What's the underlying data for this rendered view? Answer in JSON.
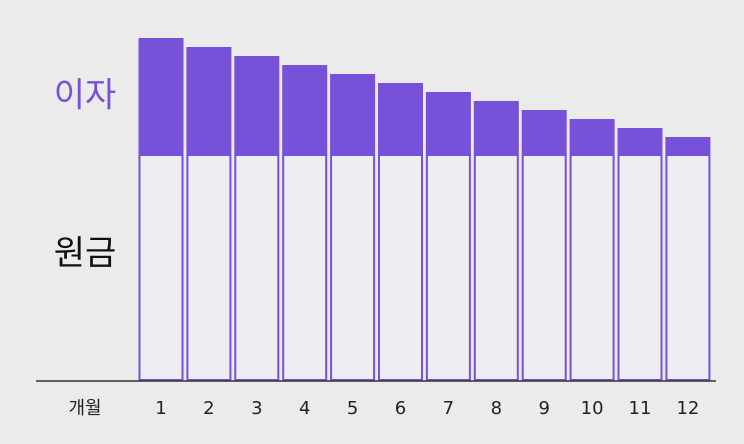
{
  "chart_data": {
    "type": "bar",
    "stacked": true,
    "x_label": "개월",
    "categories": [
      "1",
      "2",
      "3",
      "4",
      "5",
      "6",
      "7",
      "8",
      "9",
      "10",
      "11",
      "12"
    ],
    "series": [
      {
        "name": "원금",
        "color": "#7752d8",
        "values": [
          100,
          100,
          100,
          100,
          100,
          100,
          100,
          100,
          100,
          100,
          100,
          100
        ]
      },
      {
        "name": "이자",
        "color": "#7752d8",
        "values": [
          52,
          48,
          44,
          40,
          36,
          32,
          28,
          24,
          20,
          16,
          12,
          8
        ]
      }
    ]
  }
}
